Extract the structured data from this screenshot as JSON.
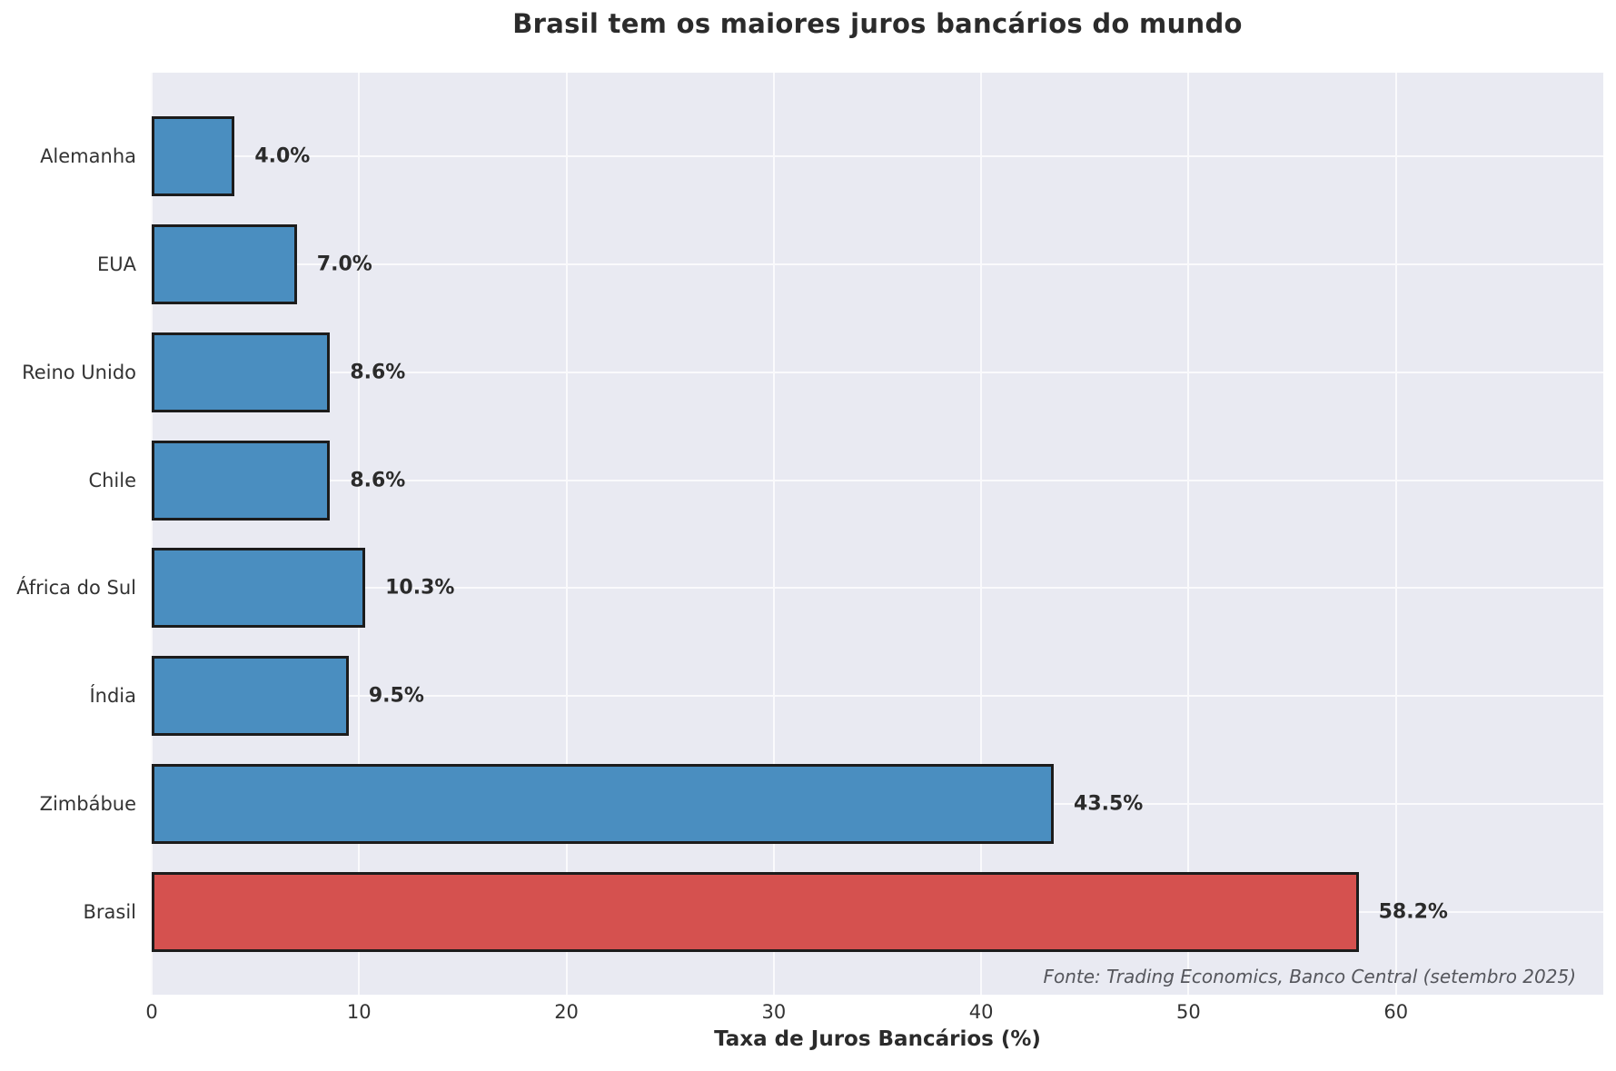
{
  "title": "Brasil tem os maiores juros bancários do mundo",
  "x_axis": {
    "label": "Taxa de Juros Bancários (%)",
    "tick_labels": [
      "0",
      "10",
      "20",
      "30",
      "40",
      "50",
      "60"
    ]
  },
  "source_note": "Fonte: Trading Economics, Banco Central (setembro 2025)",
  "colors": {
    "bar_blue": "#4a8ec0",
    "bar_red": "#d5514f",
    "bar_edge": "#1c1c1c",
    "plot_background": "#e9eaf2",
    "gridline": "#fafafc",
    "text": "#2b2b2b",
    "source_text": "#55565c"
  },
  "chart_data": {
    "type": "bar",
    "orientation": "horizontal",
    "title": "Brasil tem os maiores juros bancários do mundo",
    "xlabel": "Taxa de Juros Bancários (%)",
    "ylabel": "",
    "categories": [
      "Alemanha",
      "EUA",
      "Reino Unido",
      "Chile",
      "África do Sul",
      "Índia",
      "Zimbábue",
      "Brasil"
    ],
    "values": [
      4.0,
      7.0,
      8.6,
      8.6,
      10.3,
      9.5,
      43.5,
      58.2
    ],
    "value_labels": [
      "4.0%",
      "7.0%",
      "8.6%",
      "8.6%",
      "10.3%",
      "9.5%",
      "43.5%",
      "58.2%"
    ],
    "highlight_category": "Brasil",
    "xlim": [
      0,
      70
    ],
    "xticks": [
      0,
      10,
      20,
      30,
      40,
      50,
      60
    ],
    "grid": true,
    "legend": false,
    "annotation": "Fonte: Trading Economics, Banco Central (setembro 2025)"
  }
}
